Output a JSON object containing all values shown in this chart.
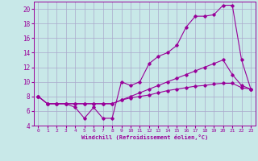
{
  "xlabel": "Windchill (Refroidissement éolien,°C)",
  "bg_color": "#c8e8e8",
  "line_color": "#990099",
  "grid_color": "#aaaacc",
  "xlim": [
    -0.5,
    23.5
  ],
  "ylim": [
    4,
    21
  ],
  "yticks": [
    4,
    6,
    8,
    10,
    12,
    14,
    16,
    18,
    20
  ],
  "xticks": [
    0,
    1,
    2,
    3,
    4,
    5,
    6,
    7,
    8,
    9,
    10,
    11,
    12,
    13,
    14,
    15,
    16,
    17,
    18,
    19,
    20,
    21,
    22,
    23
  ],
  "series": [
    {
      "x": [
        0,
        1,
        2,
        3,
        4,
        5,
        6,
        7,
        8,
        9,
        10,
        11,
        12,
        13,
        14,
        15,
        16,
        17,
        18,
        19,
        20,
        21,
        22,
        23
      ],
      "y": [
        8,
        7,
        7,
        7,
        6.5,
        5,
        6.5,
        5,
        5,
        10,
        9.5,
        10,
        12.5,
        13.5,
        14,
        15,
        17.5,
        19,
        19,
        19.2,
        20.5,
        20.5,
        13,
        9
      ]
    },
    {
      "x": [
        0,
        1,
        2,
        3,
        4,
        5,
        6,
        7,
        8,
        9,
        10,
        11,
        12,
        13,
        14,
        15,
        16,
        17,
        18,
        19,
        20,
        21,
        22,
        23
      ],
      "y": [
        8,
        7,
        7,
        7,
        7,
        7,
        7,
        7,
        7,
        7.5,
        8,
        8.5,
        9,
        9.5,
        10,
        10.5,
        11,
        11.5,
        12,
        12.5,
        13,
        11,
        9.5,
        9
      ]
    },
    {
      "x": [
        0,
        1,
        2,
        3,
        4,
        5,
        6,
        7,
        8,
        9,
        10,
        11,
        12,
        13,
        14,
        15,
        16,
        17,
        18,
        19,
        20,
        21,
        22,
        23
      ],
      "y": [
        8,
        7,
        7,
        7,
        7,
        7,
        7,
        7,
        7,
        7.5,
        7.8,
        8,
        8.2,
        8.5,
        8.8,
        9,
        9.2,
        9.4,
        9.5,
        9.7,
        9.8,
        9.8,
        9.2,
        9
      ]
    }
  ]
}
